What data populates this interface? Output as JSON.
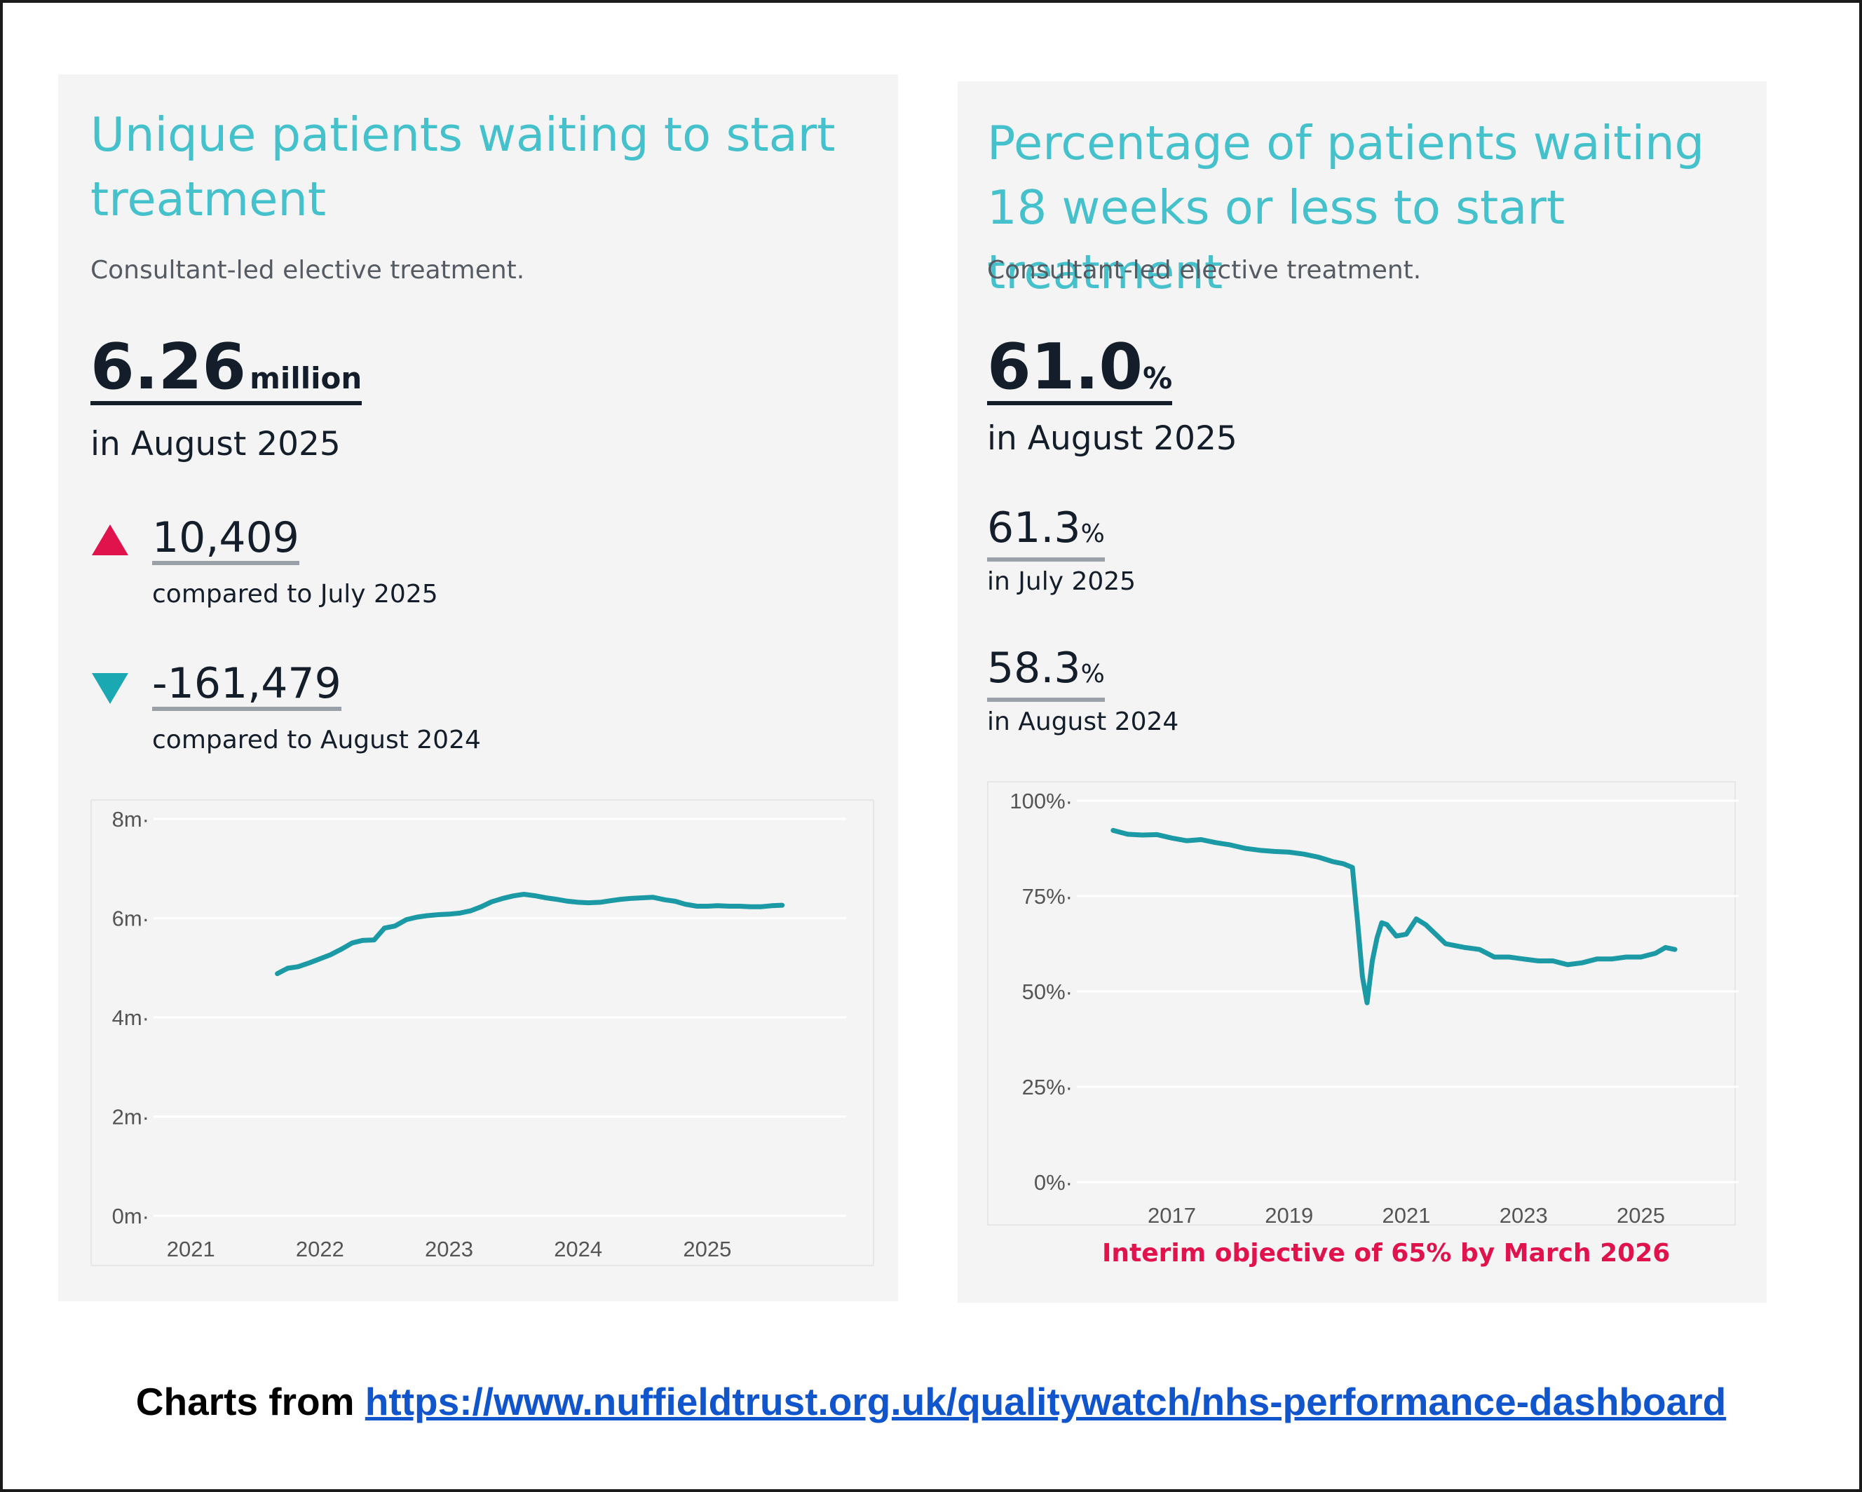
{
  "left_panel": {
    "title": "Unique patients waiting to start treatment",
    "subtitle": "Consultant-led elective treatment.",
    "headline_value": "6.26",
    "headline_unit": "million",
    "headline_period": "in August 2025",
    "comparisons": [
      {
        "direction": "up",
        "color": "#e0134d",
        "value": "10,409",
        "label": "compared to July 2025"
      },
      {
        "direction": "down",
        "color": "#1aa9b3",
        "value": "-161,479",
        "label": "compared to August 2024"
      }
    ]
  },
  "right_panel": {
    "title": "Percentage of patients waiting 18 weeks or less to start treatment",
    "subtitle": "Consultant-led elective treatment.",
    "headline_value": "61.0",
    "headline_unit": "%",
    "headline_period": "in August 2025",
    "comparisons": [
      {
        "value": "61.3",
        "unit": "%",
        "label": "in July 2025"
      },
      {
        "value": "58.3",
        "unit": "%",
        "label": "in August 2024"
      }
    ],
    "objective_note": "Interim objective of 65% by March 2026"
  },
  "source": {
    "prefix": "Charts from ",
    "link": "https://www.nuffieldtrust.org.uk/qualitywatch/nhs-performance-dashboard"
  },
  "colors": {
    "accent": "#45c1cc",
    "series": "#1b9aa6",
    "background": "#f4f4f4"
  },
  "chart_data": [
    {
      "type": "line",
      "ylim": [
        0,
        8
      ],
      "y_ticks": [
        0,
        2,
        4,
        6,
        8
      ],
      "y_tick_labels": [
        "0m",
        "2m",
        "4m",
        "6m",
        "8m"
      ],
      "xlim": [
        2020.95,
        2026.0
      ],
      "x_ticks": [
        2021,
        2022,
        2023,
        2024,
        2025
      ],
      "x_tick_labels": [
        "2021",
        "2022",
        "2023",
        "2024",
        "2025"
      ],
      "grid": true,
      "x": [
        2021.67,
        2021.75,
        2021.83,
        2021.92,
        2022.0,
        2022.08,
        2022.17,
        2022.25,
        2022.33,
        2022.42,
        2022.5,
        2022.58,
        2022.67,
        2022.75,
        2022.83,
        2022.92,
        2023.0,
        2023.08,
        2023.17,
        2023.25,
        2023.33,
        2023.42,
        2023.5,
        2023.58,
        2023.67,
        2023.75,
        2023.83,
        2023.92,
        2024.0,
        2024.08,
        2024.17,
        2024.25,
        2024.33,
        2024.42,
        2024.5,
        2024.58,
        2024.67,
        2024.75,
        2024.83,
        2024.92,
        2025.0,
        2025.08,
        2025.17,
        2025.25,
        2025.33,
        2025.42,
        2025.5,
        2025.58
      ],
      "values": [
        4.88,
        4.99,
        5.02,
        5.1,
        5.18,
        5.26,
        5.38,
        5.5,
        5.55,
        5.56,
        5.8,
        5.84,
        5.97,
        6.02,
        6.05,
        6.07,
        6.08,
        6.1,
        6.15,
        6.23,
        6.33,
        6.4,
        6.45,
        6.48,
        6.45,
        6.41,
        6.38,
        6.34,
        6.32,
        6.31,
        6.32,
        6.35,
        6.38,
        6.4,
        6.41,
        6.42,
        6.37,
        6.34,
        6.28,
        6.24,
        6.24,
        6.25,
        6.24,
        6.24,
        6.23,
        6.23,
        6.25,
        6.26
      ]
    },
    {
      "type": "line",
      "ylim": [
        0,
        100
      ],
      "y_ticks": [
        0,
        25,
        50,
        75,
        100
      ],
      "y_tick_labels": [
        "0%",
        "25%",
        "50%",
        "75%",
        "100%"
      ],
      "xlim": [
        2015.5,
        2026.5
      ],
      "x_ticks": [
        2017,
        2019,
        2021,
        2023,
        2025
      ],
      "x_tick_labels": [
        "2017",
        "2019",
        "2021",
        "2023",
        "2025"
      ],
      "grid": true,
      "x": [
        2016.0,
        2016.25,
        2016.5,
        2016.75,
        2017.0,
        2017.25,
        2017.5,
        2017.75,
        2018.0,
        2018.25,
        2018.5,
        2018.75,
        2019.0,
        2019.25,
        2019.5,
        2019.75,
        2019.92,
        2020.0,
        2020.08,
        2020.17,
        2020.25,
        2020.33,
        2020.42,
        2020.5,
        2020.58,
        2020.67,
        2020.75,
        2020.83,
        2021.0,
        2021.17,
        2021.33,
        2021.5,
        2021.67,
        2021.83,
        2022.0,
        2022.25,
        2022.5,
        2022.75,
        2023.0,
        2023.25,
        2023.5,
        2023.75,
        2024.0,
        2024.25,
        2024.5,
        2024.75,
        2025.0,
        2025.25,
        2025.42,
        2025.58
      ],
      "values": [
        92.2,
        91.2,
        91.0,
        91.1,
        90.2,
        89.5,
        89.8,
        89.0,
        88.4,
        87.5,
        87.0,
        86.7,
        86.5,
        86.0,
        85.2,
        84.0,
        83.5,
        83.0,
        82.5,
        68.0,
        54.0,
        47.0,
        58.0,
        64.0,
        68.0,
        67.5,
        66.0,
        64.5,
        65.0,
        69.0,
        67.5,
        65.0,
        62.5,
        62.0,
        61.5,
        61.0,
        59.0,
        59.0,
        58.5,
        58.0,
        58.0,
        57.0,
        57.5,
        58.5,
        58.5,
        59.0,
        59.0,
        60.0,
        61.5,
        61.0
      ]
    }
  ]
}
